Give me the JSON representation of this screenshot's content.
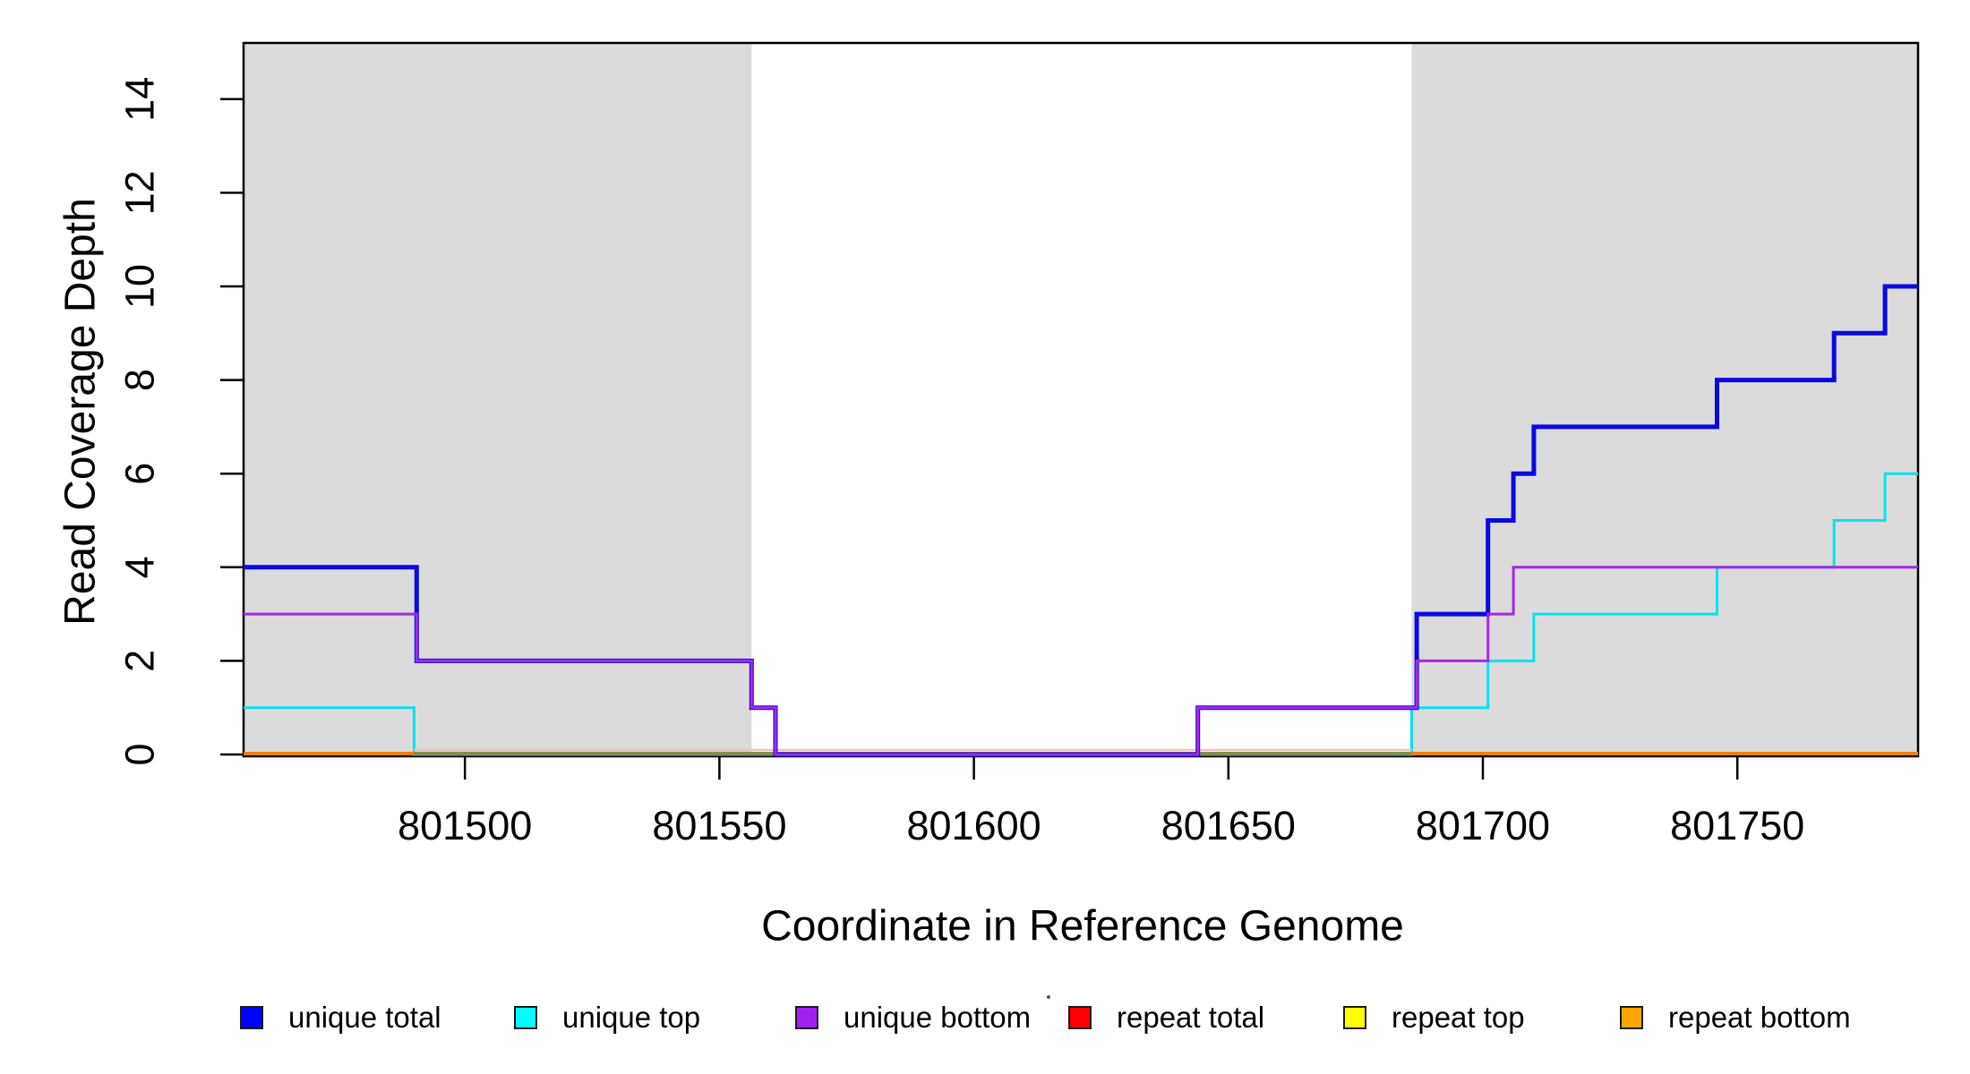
{
  "chart_data": {
    "type": "line",
    "subtype": "step",
    "title": "",
    "xlabel": "Coordinate in Reference Genome",
    "ylabel": "Read Coverage Depth",
    "xlim": [
      801456.5,
      801785.5
    ],
    "ylim": [
      0,
      15.2
    ],
    "x_ticks": [
      801500,
      801550,
      801600,
      801650,
      801700,
      801750
    ],
    "y_ticks": [
      0,
      2,
      4,
      6,
      8,
      10,
      12,
      14
    ],
    "grid": false,
    "legend_position": "bottom",
    "plot_background": "#ffffff",
    "shaded_region_color": "#DBDBDB",
    "shaded_regions": [
      {
        "name": "shaded-region-left",
        "from": 801456.5,
        "to": 801556.3,
        "color": "#DBDBDB"
      },
      {
        "name": "shaded-region-right",
        "from": 801686.0,
        "to": 801785.5,
        "color": "#DBDBDB"
      }
    ],
    "series": [
      {
        "name": "repeat total",
        "color": "#FF0000",
        "width": 2,
        "end": 801785.5,
        "steps": [
          [
            801456.5,
            0
          ]
        ]
      },
      {
        "name": "repeat top",
        "color": "#FFFF00",
        "width": 2,
        "end": 801785.5,
        "steps": [
          [
            801456.5,
            0
          ]
        ]
      },
      {
        "name": "repeat bottom",
        "color": "#E8820A",
        "width": 2,
        "end": 801785.5,
        "steps": [
          [
            801456.5,
            0
          ]
        ]
      },
      {
        "name": "unique top",
        "color": "#04E2F2",
        "width": 3,
        "end": 801785.5,
        "steps": [
          [
            801456.5,
            1
          ],
          [
            801490,
            0
          ],
          [
            801686,
            1
          ],
          [
            801701,
            2
          ],
          [
            801710,
            3
          ],
          [
            801746,
            4
          ],
          [
            801769,
            5
          ],
          [
            801779,
            6
          ]
        ]
      },
      {
        "name": "unique total",
        "color": "#0909E3",
        "width": 5,
        "end": 801785.5,
        "steps": [
          [
            801456.5,
            4
          ],
          [
            801490.5,
            2
          ],
          [
            801556.3,
            1
          ],
          [
            801561,
            0
          ],
          [
            801644,
            1
          ],
          [
            801687,
            3
          ],
          [
            801701,
            5
          ],
          [
            801706,
            6
          ],
          [
            801710,
            7
          ],
          [
            801746,
            8
          ],
          [
            801769,
            9
          ],
          [
            801779,
            10
          ]
        ]
      },
      {
        "name": "unique bottom",
        "color": "#A826EC",
        "width": 3,
        "end": 801785.5,
        "steps": [
          [
            801456.5,
            3
          ],
          [
            801490.5,
            2
          ],
          [
            801556.3,
            1
          ],
          [
            801561,
            0
          ],
          [
            801644,
            1
          ],
          [
            801687,
            2
          ],
          [
            801701,
            3
          ],
          [
            801706,
            4
          ]
        ]
      }
    ],
    "baseline_overlays": [
      {
        "name": "zero-line-orange-left",
        "from": 801456.5,
        "to": 801490.0,
        "color": "#E8820A",
        "width": 4,
        "dy": -1
      },
      {
        "name": "zero-line-olive",
        "from": 801490.0,
        "to": 801686.0,
        "color": "#7D9152",
        "width": 4,
        "dy": -1
      },
      {
        "name": "zero-line-pink",
        "from": 801490.0,
        "to": 801686.0,
        "color": "#EFC4BA",
        "width": 2.5,
        "dy": -5
      },
      {
        "name": "zero-line-orange-right",
        "from": 801686.0,
        "to": 801785.5,
        "color": "#E8820A",
        "width": 4,
        "dy": -1
      }
    ],
    "legend": {
      "items": [
        {
          "label": "unique total",
          "color": "#0000FF"
        },
        {
          "label": "unique top",
          "color": "#00FFFF"
        },
        {
          "label": "unique bottom",
          "color": "#A020F0"
        },
        {
          "label": "repeat total",
          "color": "#FF0000"
        },
        {
          "label": "repeat top",
          "color": "#FFFF00"
        },
        {
          "label": "repeat bottom",
          "color": "#FFA500"
        }
      ]
    }
  }
}
